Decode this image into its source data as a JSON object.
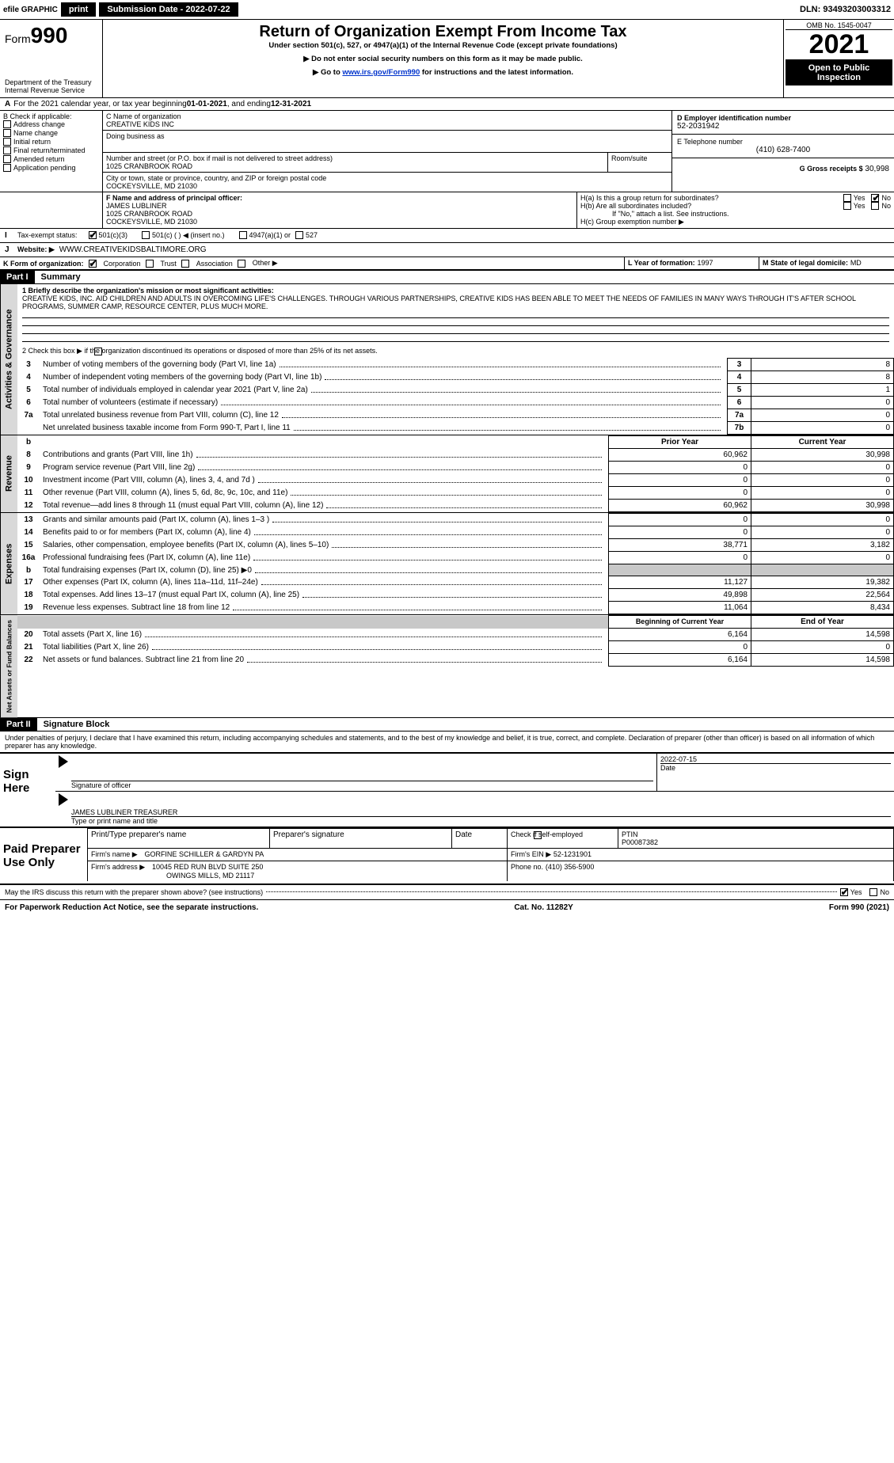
{
  "topbar": {
    "efile": "efile GRAPHIC",
    "print": "print",
    "subdate_label": "Submission Date - 2022-07-22",
    "dln_label": "DLN: 93493203003312"
  },
  "header": {
    "form_word": "Form",
    "form_num": "990",
    "dept": "Department of the Treasury",
    "irs": "Internal Revenue Service",
    "title": "Return of Organization Exempt From Income Tax",
    "sub1": "Under section 501(c), 527, or 4947(a)(1) of the Internal Revenue Code (except private foundations)",
    "sub2": "▶ Do not enter social security numbers on this form as it may be made public.",
    "sub3_a": "▶ Go to ",
    "sub3_link": "www.irs.gov/Form990",
    "sub3_b": " for instructions and the latest information.",
    "omb": "OMB No. 1545-0047",
    "year": "2021",
    "inspect1": "Open to Public",
    "inspect2": "Inspection"
  },
  "A": {
    "text_a": "For the 2021 calendar year, or tax year beginning ",
    "begin": "01-01-2021",
    "text_b": " , and ending ",
    "end": "12-31-2021"
  },
  "B": {
    "label": "B Check if applicable:",
    "opts": [
      "Address change",
      "Name change",
      "Initial return",
      "Final return/terminated",
      "Amended return",
      "Application pending"
    ]
  },
  "C": {
    "name_label": "C Name of organization",
    "name": "CREATIVE KIDS INC",
    "dba_label": "Doing business as",
    "street_label": "Number and street (or P.O. box if mail is not delivered to street address)",
    "room_label": "Room/suite",
    "street": "1025 CRANBROOK ROAD",
    "city_label": "City or town, state or province, country, and ZIP or foreign postal code",
    "city": "COCKEYSVILLE, MD  21030"
  },
  "D": {
    "label": "D Employer identification number",
    "value": "52-2031942"
  },
  "E": {
    "label": "E Telephone number",
    "value": "(410) 628-7400"
  },
  "G": {
    "label": "G Gross receipts $",
    "value": "30,998"
  },
  "F": {
    "label": "F  Name and address of principal officer:",
    "name": "JAMES LUBLINER",
    "street": "1025 CRANBROOK ROAD",
    "city": "COCKEYSVILLE, MD  21030"
  },
  "H": {
    "a": "H(a)  Is this a group return for subordinates?",
    "b": "H(b)  Are all subordinates included?",
    "b_note": "If \"No,\" attach a list. See instructions.",
    "c": "H(c)  Group exemption number ▶",
    "yes": "Yes",
    "no": "No"
  },
  "I": {
    "label": "Tax-exempt status:",
    "opts": [
      "501(c)(3)",
      "501(c) (   ) ◀ (insert no.)",
      "4947(a)(1) or",
      "527"
    ]
  },
  "J": {
    "label": "Website: ▶",
    "value": "WWW.CREATIVEKIDSBALTIMORE.ORG"
  },
  "K": {
    "label": "K Form of organization:",
    "opts": [
      "Corporation",
      "Trust",
      "Association",
      "Other ▶"
    ]
  },
  "L": {
    "label": "L Year of formation:",
    "value": "1997"
  },
  "M": {
    "label": "M State of legal domicile:",
    "value": "MD"
  },
  "part1": {
    "hdr": "Part I",
    "title": "Summary",
    "line1_label": "1  Briefly describe the organization's mission or most significant activities:",
    "mission": "CREATIVE KIDS, INC. AID CHILDREN AND ADULTS IN OVERCOMING LIFE'S CHALLENGES. THROUGH VARIOUS PARTNERSHIPS, CREATIVE KIDS HAS BEEN ABLE TO MEET THE NEEDS OF FAMILIES IN MANY WAYS THROUGH IT'S AFTER SCHOOL PROGRAMS, SUMMER CAMP, RESOURCE CENTER, PLUS MUCH MORE.",
    "line2": "2   Check this box ▶       if the organization discontinued its operations or disposed of more than 25% of its net assets.",
    "gov_rows": [
      {
        "n": "3",
        "t": "Number of voting members of the governing body (Part VI, line 1a)",
        "box": "3",
        "v": "8"
      },
      {
        "n": "4",
        "t": "Number of independent voting members of the governing body (Part VI, line 1b)",
        "box": "4",
        "v": "8"
      },
      {
        "n": "5",
        "t": "Total number of individuals employed in calendar year 2021 (Part V, line 2a)",
        "box": "5",
        "v": "1"
      },
      {
        "n": "6",
        "t": "Total number of volunteers (estimate if necessary)",
        "box": "6",
        "v": "0"
      },
      {
        "n": "7a",
        "t": "Total unrelated business revenue from Part VIII, column (C), line 12",
        "box": "7a",
        "v": "0"
      },
      {
        "n": "",
        "t": "Net unrelated business taxable income from Form 990-T, Part I, line 11",
        "box": "7b",
        "v": "0"
      }
    ],
    "col_prior": "Prior Year",
    "col_current": "Current Year",
    "rev_rows": [
      {
        "n": "8",
        "t": "Contributions and grants (Part VIII, line 1h)",
        "p": "60,962",
        "c": "30,998"
      },
      {
        "n": "9",
        "t": "Program service revenue (Part VIII, line 2g)",
        "p": "0",
        "c": "0"
      },
      {
        "n": "10",
        "t": "Investment income (Part VIII, column (A), lines 3, 4, and 7d )",
        "p": "0",
        "c": "0"
      },
      {
        "n": "11",
        "t": "Other revenue (Part VIII, column (A), lines 5, 6d, 8c, 9c, 10c, and 11e)",
        "p": "0",
        "c": "0"
      },
      {
        "n": "12",
        "t": "Total revenue—add lines 8 through 11 (must equal Part VIII, column (A), line 12)",
        "p": "60,962",
        "c": "30,998"
      }
    ],
    "exp_rows": [
      {
        "n": "13",
        "t": "Grants and similar amounts paid (Part IX, column (A), lines 1–3 )",
        "p": "0",
        "c": "0"
      },
      {
        "n": "14",
        "t": "Benefits paid to or for members (Part IX, column (A), line 4)",
        "p": "0",
        "c": "0"
      },
      {
        "n": "15",
        "t": "Salaries, other compensation, employee benefits (Part IX, column (A), lines 5–10)",
        "p": "38,771",
        "c": "3,182"
      },
      {
        "n": "16a",
        "t": "Professional fundraising fees (Part IX, column (A), line 11e)",
        "p": "0",
        "c": "0"
      },
      {
        "n": "b",
        "t": "Total fundraising expenses (Part IX, column (D), line 25) ▶0",
        "p": "",
        "c": "",
        "shade": true
      },
      {
        "n": "17",
        "t": "Other expenses (Part IX, column (A), lines 11a–11d, 11f–24e)",
        "p": "11,127",
        "c": "19,382"
      },
      {
        "n": "18",
        "t": "Total expenses. Add lines 13–17 (must equal Part IX, column (A), line 25)",
        "p": "49,898",
        "c": "22,564"
      },
      {
        "n": "19",
        "t": "Revenue less expenses. Subtract line 18 from line 12",
        "p": "11,064",
        "c": "8,434"
      }
    ],
    "col_begin": "Beginning of Current Year",
    "col_end": "End of Year",
    "net_rows": [
      {
        "n": "20",
        "t": "Total assets (Part X, line 16)",
        "p": "6,164",
        "c": "14,598"
      },
      {
        "n": "21",
        "t": "Total liabilities (Part X, line 26)",
        "p": "0",
        "c": "0"
      },
      {
        "n": "22",
        "t": "Net assets or fund balances. Subtract line 21 from line 20",
        "p": "6,164",
        "c": "14,598"
      }
    ],
    "vtabs": {
      "gov": "Activities & Governance",
      "rev": "Revenue",
      "exp": "Expenses",
      "net": "Net Assets or Fund Balances"
    }
  },
  "part2": {
    "hdr": "Part II",
    "title": "Signature Block",
    "penalty": "Under penalties of perjury, I declare that I have examined this return, including accompanying schedules and statements, and to the best of my knowledge and belief, it is true, correct, and complete. Declaration of preparer (other than officer) is based on all information of which preparer has any knowledge."
  },
  "sign": {
    "here": "Sign Here",
    "sig_label": "Signature of officer",
    "date_label": "Date",
    "date": "2022-07-15",
    "name": "JAMES LUBLINER  TREASURER",
    "name_label": "Type or print name and title"
  },
  "paid": {
    "label": "Paid Preparer Use Only",
    "col1": "Print/Type preparer's name",
    "col2": "Preparer's signature",
    "col3": "Date",
    "col4a": "Check         if self-employed",
    "col5_label": "PTIN",
    "col5": "P00087382",
    "firm_name_label": "Firm's name    ▶",
    "firm_name": "GORFINE SCHILLER & GARDYN PA",
    "firm_ein_label": "Firm's EIN ▶",
    "firm_ein": "52-1231901",
    "firm_addr_label": "Firm's address ▶",
    "firm_addr1": "10045 RED RUN BLVD SUITE 250",
    "firm_addr2": "OWINGS MILLS, MD  21117",
    "phone_label": "Phone no.",
    "phone": "(410) 356-5900"
  },
  "discuss": {
    "q": "May the IRS discuss this return with the preparer shown above? (see instructions)",
    "yes": "Yes",
    "no": "No"
  },
  "footer": {
    "left": "For Paperwork Reduction Act Notice, see the separate instructions.",
    "mid": "Cat. No. 11282Y",
    "right": "Form 990 (2021)"
  }
}
